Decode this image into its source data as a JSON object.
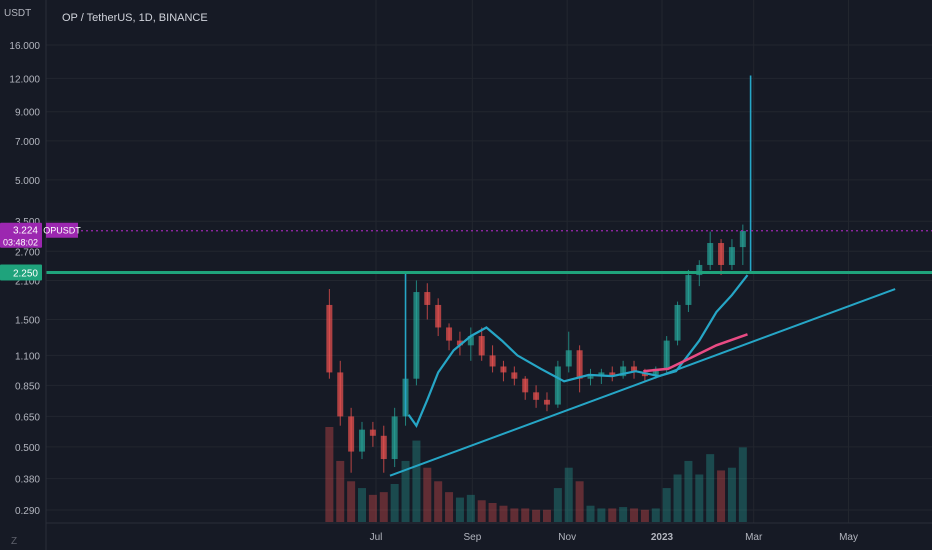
{
  "header": {
    "currency": "USDT",
    "title": "OP / TetherUS, 1D, BINANCE"
  },
  "footer": {
    "tv_logo": "Z"
  },
  "colors": {
    "background": "#161a25",
    "grid": "#22262f",
    "up": "#26a69a",
    "down": "#ef5350",
    "trend": "#26a6c6",
    "ma_slow": "#e94b84",
    "resistance": "#1fa37c",
    "price_tag": "#9c27b0"
  },
  "chart_data": {
    "type": "candlestick",
    "title": "OP / TetherUS, 1D, BINANCE",
    "y_scale": "log",
    "y_ticks": [
      "16.000",
      "12.000",
      "9.000",
      "7.000",
      "5.000",
      "3.500",
      "2.700",
      "2.100",
      "1.500",
      "1.100",
      "0.850",
      "0.650",
      "0.500",
      "0.380",
      "0.290"
    ],
    "x_ticks": [
      "Jul",
      "Sep",
      "Nov",
      "2023",
      "Mar",
      "May"
    ],
    "ylim": [
      0.26,
      19
    ],
    "price_tags": [
      {
        "label": "OPUSDT",
        "value": "3.224",
        "countdown": "03:48:02"
      },
      {
        "label": "",
        "value": "2.250"
      }
    ],
    "resistance_level": 2.25,
    "current_price": 3.224,
    "candles": [
      [
        "2022-06-01",
        1.7,
        1.95,
        0.9,
        0.95
      ],
      [
        "2022-06-08",
        0.95,
        1.05,
        0.6,
        0.65
      ],
      [
        "2022-06-15",
        0.65,
        0.7,
        0.4,
        0.48
      ],
      [
        "2022-06-22",
        0.48,
        0.62,
        0.45,
        0.58
      ],
      [
        "2022-06-29",
        0.58,
        0.62,
        0.5,
        0.55
      ],
      [
        "2022-07-06",
        0.55,
        0.6,
        0.4,
        0.45
      ],
      [
        "2022-07-13",
        0.45,
        0.7,
        0.42,
        0.65
      ],
      [
        "2022-07-20",
        0.65,
        1.0,
        0.6,
        0.9
      ],
      [
        "2022-07-27",
        0.9,
        2.1,
        0.85,
        1.9
      ],
      [
        "2022-08-03",
        1.9,
        2.05,
        1.5,
        1.7
      ],
      [
        "2022-08-10",
        1.7,
        1.8,
        1.3,
        1.4
      ],
      [
        "2022-08-17",
        1.4,
        1.45,
        1.15,
        1.25
      ],
      [
        "2022-08-24",
        1.25,
        1.35,
        1.1,
        1.2
      ],
      [
        "2022-08-31",
        1.2,
        1.4,
        1.05,
        1.3
      ],
      [
        "2022-09-07",
        1.3,
        1.4,
        1.05,
        1.1
      ],
      [
        "2022-09-14",
        1.1,
        1.2,
        0.95,
        1.0
      ],
      [
        "2022-09-21",
        1.0,
        1.05,
        0.88,
        0.95
      ],
      [
        "2022-09-28",
        0.95,
        1.0,
        0.85,
        0.9
      ],
      [
        "2022-10-05",
        0.9,
        0.92,
        0.75,
        0.8
      ],
      [
        "2022-10-12",
        0.8,
        0.85,
        0.7,
        0.75
      ],
      [
        "2022-10-19",
        0.75,
        0.8,
        0.68,
        0.72
      ],
      [
        "2022-10-26",
        0.72,
        1.05,
        0.7,
        1.0
      ],
      [
        "2022-11-02",
        1.0,
        1.35,
        0.95,
        1.15
      ],
      [
        "2022-11-09",
        1.15,
        1.2,
        0.8,
        0.9
      ],
      [
        "2022-11-16",
        0.9,
        0.98,
        0.85,
        0.92
      ],
      [
        "2022-11-23",
        0.92,
        0.98,
        0.86,
        0.95
      ],
      [
        "2022-11-30",
        0.95,
        1.0,
        0.88,
        0.92
      ],
      [
        "2022-12-07",
        0.92,
        1.05,
        0.9,
        1.0
      ],
      [
        "2022-12-14",
        1.0,
        1.05,
        0.9,
        0.95
      ],
      [
        "2022-12-21",
        0.95,
        0.98,
        0.88,
        0.92
      ],
      [
        "2022-12-28",
        0.92,
        1.0,
        0.9,
        0.98
      ],
      [
        "2023-01-04",
        0.98,
        1.3,
        0.95,
        1.25
      ],
      [
        "2023-01-11",
        1.25,
        1.75,
        1.2,
        1.7
      ],
      [
        "2023-01-18",
        1.7,
        2.3,
        1.6,
        2.2
      ],
      [
        "2023-01-25",
        2.2,
        2.5,
        2.0,
        2.4
      ],
      [
        "2023-02-01",
        2.4,
        3.2,
        2.3,
        2.9
      ],
      [
        "2023-02-08",
        2.9,
        3.0,
        2.2,
        2.4
      ],
      [
        "2023-02-15",
        2.4,
        3.0,
        2.3,
        2.8
      ],
      [
        "2023-02-22",
        2.8,
        3.4,
        2.4,
        3.22
      ]
    ],
    "trend_line": [
      [
        "2022-07-10",
        0.39
      ],
      [
        "2023-05-31",
        1.95
      ]
    ],
    "ma_fast": [
      [
        "2022-07-22",
        0.66
      ],
      [
        "2022-07-27",
        0.6
      ],
      [
        "2022-08-03",
        0.75
      ],
      [
        "2022-08-10",
        0.95
      ],
      [
        "2022-08-20",
        1.15
      ],
      [
        "2022-08-31",
        1.3
      ],
      [
        "2022-09-10",
        1.4
      ],
      [
        "2022-09-20",
        1.25
      ],
      [
        "2022-09-30",
        1.1
      ],
      [
        "2022-10-15",
        0.98
      ],
      [
        "2022-10-30",
        0.88
      ],
      [
        "2022-11-15",
        0.93
      ],
      [
        "2022-11-30",
        0.92
      ],
      [
        "2022-12-15",
        0.96
      ],
      [
        "2022-12-30",
        0.92
      ],
      [
        "2023-01-10",
        0.96
      ],
      [
        "2023-01-25",
        1.25
      ],
      [
        "2023-02-05",
        1.6
      ],
      [
        "2023-02-15",
        1.85
      ],
      [
        "2023-02-25",
        2.2
      ]
    ],
    "ma_slow": [
      [
        "2022-12-20",
        0.96
      ],
      [
        "2023-01-05",
        0.98
      ],
      [
        "2023-01-20",
        1.08
      ],
      [
        "2023-02-05",
        1.2
      ],
      [
        "2023-02-25",
        1.32
      ]
    ],
    "spikes": [
      [
        "2022-07-20",
        0.65,
        2.25
      ],
      [
        "2023-02-27",
        2.25,
        12.3
      ]
    ],
    "volume": [
      [
        "2022-06-01",
        70,
        "down"
      ],
      [
        "2022-06-08",
        45,
        "down"
      ],
      [
        "2022-06-15",
        30,
        "down"
      ],
      [
        "2022-06-22",
        25,
        "up"
      ],
      [
        "2022-06-29",
        20,
        "down"
      ],
      [
        "2022-07-06",
        22,
        "down"
      ],
      [
        "2022-07-13",
        28,
        "up"
      ],
      [
        "2022-07-20",
        45,
        "up"
      ],
      [
        "2022-07-27",
        60,
        "up"
      ],
      [
        "2022-08-03",
        40,
        "down"
      ],
      [
        "2022-08-10",
        30,
        "down"
      ],
      [
        "2022-08-17",
        22,
        "down"
      ],
      [
        "2022-08-24",
        18,
        "up"
      ],
      [
        "2022-08-31",
        20,
        "up"
      ],
      [
        "2022-09-07",
        16,
        "down"
      ],
      [
        "2022-09-14",
        14,
        "down"
      ],
      [
        "2022-09-21",
        12,
        "down"
      ],
      [
        "2022-09-28",
        10,
        "down"
      ],
      [
        "2022-10-05",
        10,
        "down"
      ],
      [
        "2022-10-12",
        9,
        "down"
      ],
      [
        "2022-10-19",
        9,
        "down"
      ],
      [
        "2022-10-26",
        25,
        "up"
      ],
      [
        "2022-11-02",
        40,
        "up"
      ],
      [
        "2022-11-09",
        30,
        "down"
      ],
      [
        "2022-11-16",
        12,
        "up"
      ],
      [
        "2022-11-23",
        10,
        "up"
      ],
      [
        "2022-11-30",
        10,
        "down"
      ],
      [
        "2022-12-07",
        11,
        "up"
      ],
      [
        "2022-12-14",
        10,
        "down"
      ],
      [
        "2022-12-21",
        9,
        "down"
      ],
      [
        "2022-12-28",
        10,
        "up"
      ],
      [
        "2023-01-04",
        25,
        "up"
      ],
      [
        "2023-01-11",
        35,
        "up"
      ],
      [
        "2023-01-18",
        45,
        "up"
      ],
      [
        "2023-01-25",
        35,
        "up"
      ],
      [
        "2023-02-01",
        50,
        "up"
      ],
      [
        "2023-02-08",
        38,
        "down"
      ],
      [
        "2023-02-15",
        40,
        "up"
      ],
      [
        "2023-02-22",
        55,
        "up"
      ]
    ]
  }
}
